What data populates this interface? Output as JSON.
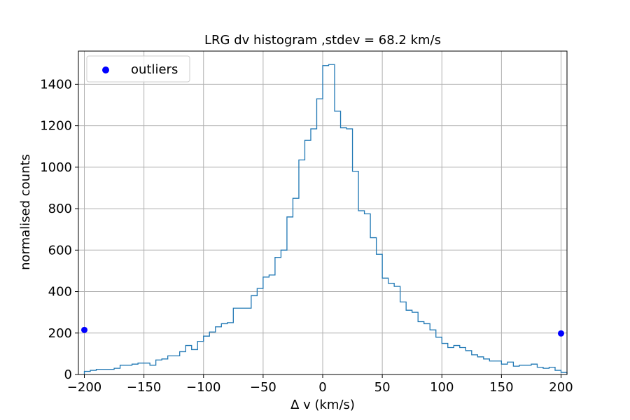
{
  "chart_data": {
    "type": "line",
    "title": "LRG dv histogram ,stdev = 68.2 km/s",
    "xlabel": "Δ v (km/s)",
    "ylabel": "normalised counts",
    "xlim": [
      -205,
      205
    ],
    "ylim": [
      0,
      1560
    ],
    "x_ticks": [
      -200,
      -150,
      -100,
      -50,
      0,
      50,
      100,
      150,
      200
    ],
    "x_tick_labels": [
      "−200",
      "−150",
      "−100",
      "−50",
      "0",
      "50",
      "100",
      "150",
      "200"
    ],
    "y_ticks": [
      0,
      200,
      400,
      600,
      800,
      1000,
      1200,
      1400
    ],
    "y_tick_labels": [
      "0",
      "200",
      "400",
      "600",
      "800",
      "1000",
      "1200",
      "1400"
    ],
    "grid": true,
    "legend": {
      "position": "upper-left",
      "entries": [
        "outliers"
      ]
    },
    "histogram": {
      "bin_width": 5,
      "bin_start": -200,
      "counts": [
        15,
        20,
        25,
        25,
        25,
        30,
        45,
        45,
        50,
        55,
        55,
        45,
        70,
        75,
        90,
        90,
        110,
        140,
        120,
        160,
        185,
        205,
        230,
        245,
        250,
        320,
        320,
        320,
        380,
        415,
        470,
        480,
        565,
        600,
        760,
        850,
        1035,
        1130,
        1185,
        1330,
        1490,
        1495,
        1270,
        1190,
        1185,
        980,
        790,
        775,
        660,
        580,
        465,
        440,
        425,
        350,
        310,
        300,
        255,
        245,
        215,
        180,
        150,
        130,
        140,
        130,
        115,
        95,
        85,
        75,
        65,
        65,
        50,
        60,
        40,
        45,
        45,
        50,
        35,
        30,
        35,
        20,
        10
      ],
      "color": "#1f77b4"
    },
    "series": [
      {
        "name": "outliers",
        "type": "scatter",
        "color": "#0000ff",
        "points": [
          [
            -200,
            215
          ],
          [
            200,
            198
          ]
        ]
      }
    ]
  }
}
